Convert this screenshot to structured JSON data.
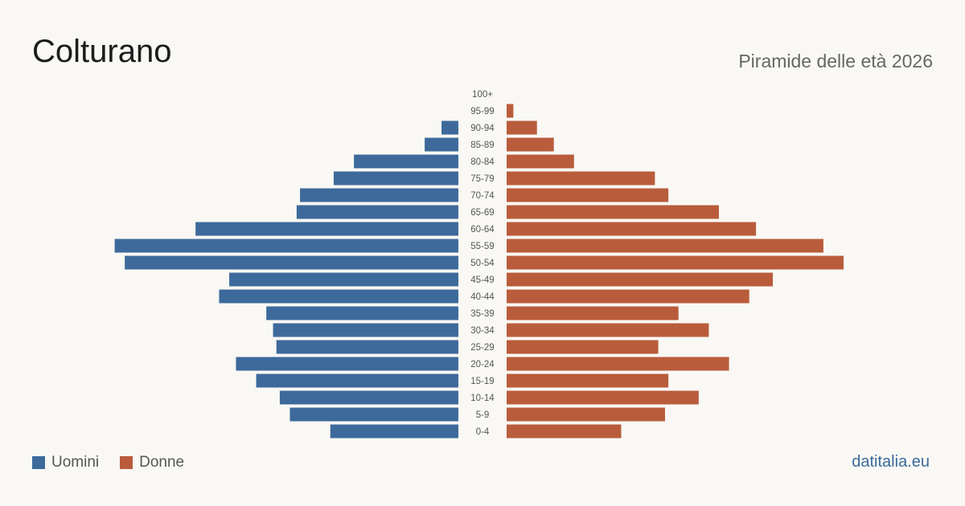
{
  "header": {
    "title": "Colturano",
    "subtitle": "Piramide delle età 2026"
  },
  "legend": {
    "men_label": "Uomini",
    "women_label": "Donne"
  },
  "footer": {
    "source": "datitalia.eu"
  },
  "colors": {
    "men": "#3d6a9b",
    "women": "#b95c3c",
    "age_label": "#555555"
  },
  "chart_data": {
    "type": "bar",
    "orientation": "horizontal-pyramid",
    "categories": [
      "100+",
      "95-99",
      "90-94",
      "85-89",
      "80-84",
      "75-79",
      "70-74",
      "65-69",
      "60-64",
      "55-59",
      "50-54",
      "45-49",
      "40-44",
      "35-39",
      "30-34",
      "25-29",
      "20-24",
      "15-19",
      "10-14",
      "5-9",
      "0-4"
    ],
    "series": [
      {
        "name": "Uomini",
        "values": [
          0,
          0,
          5,
          10,
          31,
          37,
          47,
          48,
          78,
          102,
          99,
          68,
          71,
          57,
          55,
          54,
          66,
          60,
          53,
          50,
          38
        ]
      },
      {
        "name": "Donne",
        "values": [
          0,
          2,
          9,
          14,
          20,
          44,
          48,
          63,
          74,
          94,
          100,
          79,
          72,
          51,
          60,
          45,
          66,
          48,
          57,
          47,
          34
        ]
      }
    ],
    "xlim": [
      0,
      105
    ],
    "grid": false,
    "legend_position": "bottom-left"
  }
}
